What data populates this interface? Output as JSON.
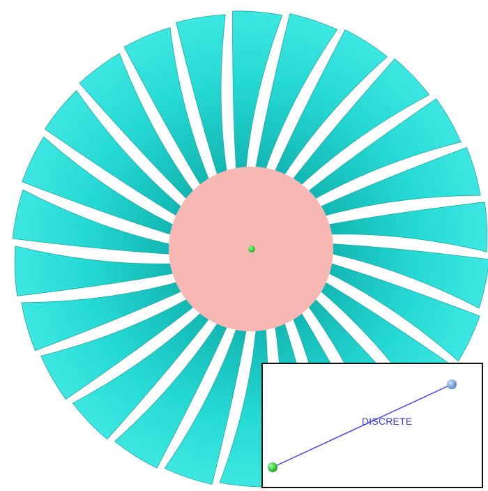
{
  "colors": {
    "blade": "#22d3cf",
    "blade_edge": "#17a9a6",
    "hub": "#f7b8b4",
    "center_node": "#22cc22",
    "link_line": "#4444ee",
    "node_end": "#6699dd",
    "label": "#3b3bd6"
  },
  "fan": {
    "blade_count": 26
  },
  "inset": {
    "label": "DISCRETE",
    "start_node": "green-sphere",
    "end_node": "blue-sphere"
  }
}
